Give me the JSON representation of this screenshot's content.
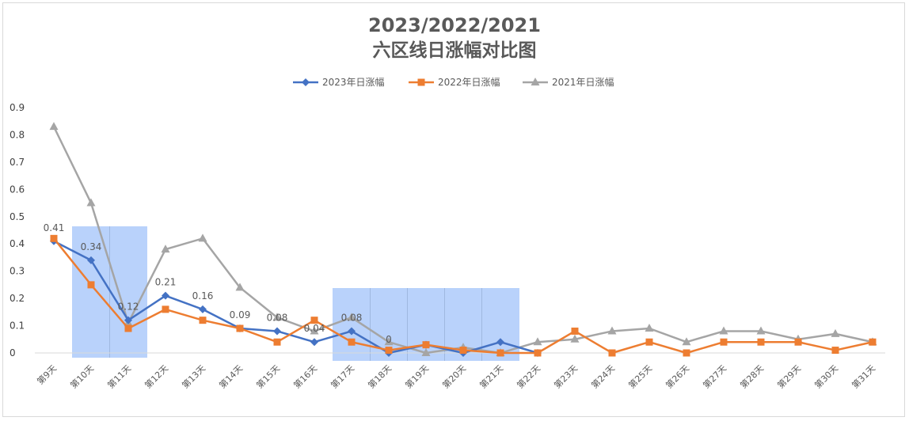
{
  "chart_data": {
    "type": "line",
    "title": "2023/2022/2021",
    "subtitle": "六区线日涨幅对比图",
    "categories": [
      "第9天",
      "第10天",
      "第11天",
      "第12天",
      "第13天",
      "第14天",
      "第15天",
      "第16天",
      "第17天",
      "第18天",
      "第19天",
      "第20天",
      "第21天",
      "第22天",
      "第23天",
      "第24天",
      "第25天",
      "第26天",
      "第27天",
      "第28天",
      "第29天",
      "第30天",
      "第31天"
    ],
    "series": [
      {
        "name": "2023年日涨幅",
        "color": "#4472c4",
        "marker": "diamond",
        "values": [
          0.41,
          0.34,
          0.12,
          0.21,
          0.16,
          0.09,
          0.08,
          0.04,
          0.08,
          0,
          null,
          null,
          null,
          null,
          null,
          null,
          null,
          null,
          null,
          null,
          null,
          null,
          null
        ],
        "trailing_values": [
          0.03,
          0.0,
          0.04,
          0.0
        ]
      },
      {
        "name": "2022年日涨幅",
        "color": "#ed7d31",
        "marker": "square",
        "values": [
          0.42,
          0.25,
          0.09,
          0.16,
          0.12,
          0.09,
          0.04,
          0.12,
          0.04,
          0.01,
          0.03,
          0.01,
          0,
          0,
          0.08,
          0,
          0.04,
          0,
          0.04,
          0.04,
          0.04,
          0.01,
          0.04
        ]
      },
      {
        "name": "2021年日涨幅",
        "color": "#a5a5a5",
        "marker": "triangle",
        "values": [
          0.83,
          0.55,
          0.11,
          0.38,
          0.42,
          0.24,
          0.13,
          0.08,
          0.13,
          0.04,
          0.0,
          0.02,
          0,
          0.04,
          0.05,
          0.08,
          0.09,
          0.04,
          0.08,
          0.08,
          0.05,
          0.07,
          0.04
        ]
      }
    ],
    "data_labels": {
      "2023年日涨幅": [
        "0.41",
        "0.34",
        "0.12",
        "0.21",
        "0.16",
        "0.09",
        "0.08",
        "0.04",
        "0.08",
        "0"
      ]
    },
    "yticks": [
      "0",
      "0.1",
      "0.2",
      "0.3",
      "0.4",
      "0.5",
      "0.6",
      "0.7",
      "0.8",
      "0.9"
    ],
    "ylim": [
      0,
      0.9
    ],
    "highlights": [
      {
        "from": "第10天",
        "to": "第11天"
      },
      {
        "from": "第17天",
        "to": "第21天"
      }
    ],
    "legend": "top",
    "grid": false
  }
}
